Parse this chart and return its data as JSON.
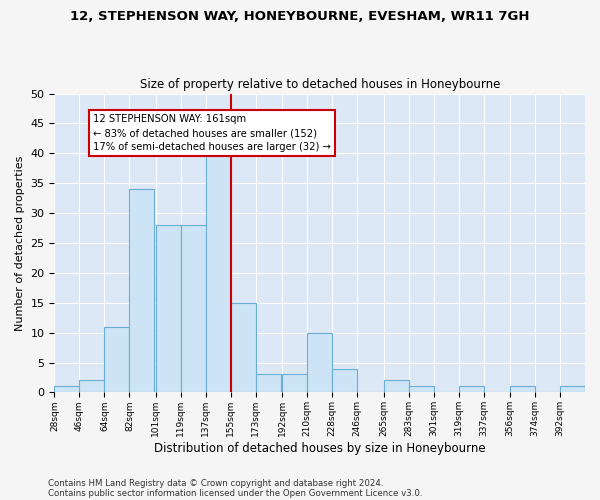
{
  "title1": "12, STEPHENSON WAY, HONEYBOURNE, EVESHAM, WR11 7GH",
  "title2": "Size of property relative to detached houses in Honeybourne",
  "xlabel": "Distribution of detached houses by size in Honeybourne",
  "ylabel": "Number of detached properties",
  "bin_labels": [
    "28sqm",
    "46sqm",
    "64sqm",
    "82sqm",
    "101sqm",
    "119sqm",
    "137sqm",
    "155sqm",
    "173sqm",
    "192sqm",
    "210sqm",
    "228sqm",
    "246sqm",
    "265sqm",
    "283sqm",
    "301sqm",
    "319sqm",
    "337sqm",
    "356sqm",
    "374sqm",
    "392sqm"
  ],
  "bin_edges": [
    28,
    46,
    64,
    82,
    101,
    119,
    137,
    155,
    173,
    192,
    210,
    228,
    246,
    265,
    283,
    301,
    319,
    337,
    356,
    374,
    392
  ],
  "bar_heights": [
    1,
    2,
    11,
    34,
    28,
    28,
    40,
    15,
    3,
    3,
    10,
    4,
    0,
    2,
    1,
    0,
    1,
    0,
    1,
    0,
    1
  ],
  "bar_facecolor": "#cce4f5",
  "bar_edgecolor": "#6aaed6",
  "grid_color": "#ffffff",
  "bg_color": "#dce8f5",
  "vline_color": "#cc0000",
  "annotation_text": "12 STEPHENSON WAY: 161sqm\n← 83% of detached houses are smaller (152)\n17% of semi-detached houses are larger (32) →",
  "annotation_box_edgecolor": "#cc0000",
  "footnote1": "Contains HM Land Registry data © Crown copyright and database right 2024.",
  "footnote2": "Contains public sector information licensed under the Open Government Licence v3.0.",
  "ylim": [
    0,
    50
  ],
  "yticks": [
    0,
    5,
    10,
    15,
    20,
    25,
    30,
    35,
    40,
    45,
    50
  ],
  "fig_bg": "#f5f5f5"
}
